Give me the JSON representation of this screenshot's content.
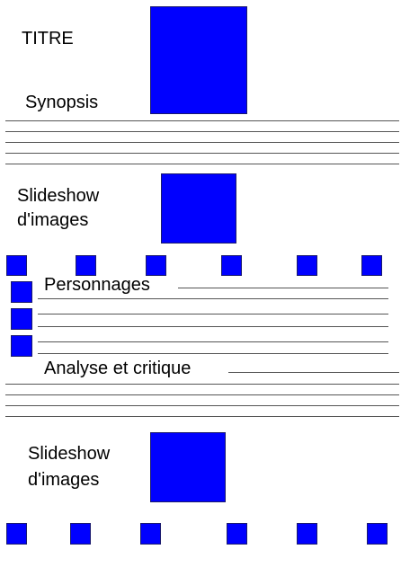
{
  "title": "TITRE",
  "synopsis": {
    "label": "Synopsis"
  },
  "slideshow_1": {
    "label_line1": "Slideshow",
    "label_line2": "d'images"
  },
  "characters": {
    "label": "Personnages"
  },
  "analysis": {
    "label": "Analyse et critique"
  },
  "slideshow_2": {
    "label_line1": "Slideshow",
    "label_line2": "d'images"
  },
  "colors": {
    "block": "#0000ff",
    "line": "#555555",
    "background": "#ffffff"
  }
}
